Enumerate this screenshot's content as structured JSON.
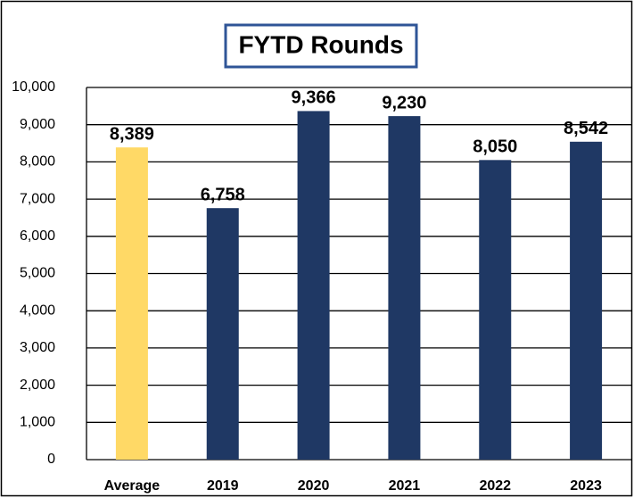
{
  "chart_data": {
    "type": "bar",
    "title": "FYTD Rounds",
    "categories": [
      "Average",
      "2019",
      "2020",
      "2021",
      "2022",
      "2023"
    ],
    "values": [
      8389,
      6758,
      9366,
      9230,
      8050,
      8542
    ],
    "value_labels": [
      "8,389",
      "6,758",
      "9,366",
      "9,230",
      "8,050",
      "8,542"
    ],
    "colors": [
      "#ffd966",
      "#1f3864",
      "#1f3864",
      "#1f3864",
      "#1f3864",
      "#1f3864"
    ],
    "ylim": [
      0,
      10000
    ],
    "yticks": [
      0,
      {
        "value": 1000,
        "label": "1,000"
      },
      {
        "value": 2000,
        "label": "2,000"
      },
      {
        "value": 3000,
        "label": "3,000"
      },
      {
        "value": 4000,
        "label": "4,000"
      },
      {
        "value": 5000,
        "label": "5,000"
      },
      {
        "value": 6000,
        "label": "6,000"
      },
      {
        "value": 7000,
        "label": "7,000"
      },
      {
        "value": 8000,
        "label": "8,000"
      },
      {
        "value": 9000,
        "label": "9,000"
      },
      {
        "value": 10000,
        "label": "10,000"
      }
    ],
    "grid": true
  }
}
